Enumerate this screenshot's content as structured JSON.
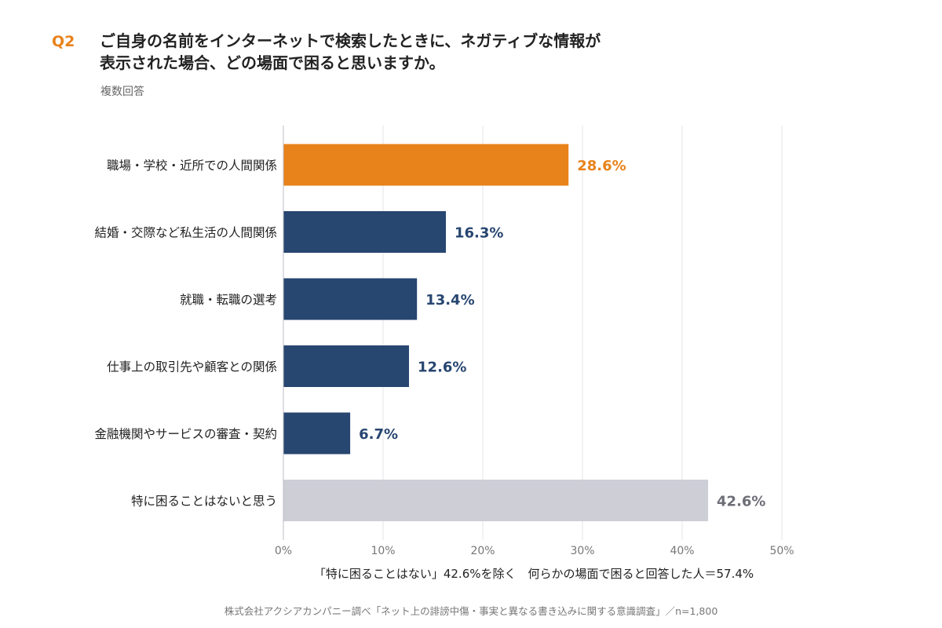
{
  "header": {
    "question_label": "Q2",
    "title_lines": [
      "ご自身の名前をインターネットで検索したときに、ネガティブな情報が",
      "表示された場合、どの場面で困ると思いますか。"
    ],
    "subtitle": "複数回答"
  },
  "colors": {
    "highlight": "#E8821A",
    "primary": "#274670",
    "neutral": "#CDCED6",
    "neutral_label": "#6E6E78",
    "grid": "#E6E6EA"
  },
  "chart_data": {
    "type": "bar",
    "orientation": "horizontal",
    "categories": [
      "職場・学校・近所での人間関係",
      "結婚・交際など私生活の人間関係",
      "就職・転職の選考",
      "仕事上の取引先や顧客との関係",
      "金融機関やサービスの審査・契約",
      "特に困ることはないと思う"
    ],
    "values": [
      28.6,
      16.3,
      13.4,
      12.6,
      6.7,
      42.6
    ],
    "value_labels": [
      "28.6%",
      "16.3%",
      "13.4%",
      "12.6%",
      "6.7%",
      "42.6%"
    ],
    "bar_styles": [
      "highlight",
      "primary",
      "primary",
      "primary",
      "primary",
      "neutral"
    ],
    "xlim": [
      0,
      50
    ],
    "xticks": [
      0,
      10,
      20,
      30,
      40,
      50
    ],
    "xtick_labels": [
      "0%",
      "10%",
      "20%",
      "30%",
      "40%",
      "50%"
    ],
    "grid": true
  },
  "footer": {
    "note": "「特に困ることはない」42.6%を除く　何らかの場面で困ると回答した人＝57.4%",
    "source": "株式会社アクシアカンパニー調べ「ネット上の誹謗中傷・事実と異なる書き込みに関する意識調査」／n=1,800"
  }
}
